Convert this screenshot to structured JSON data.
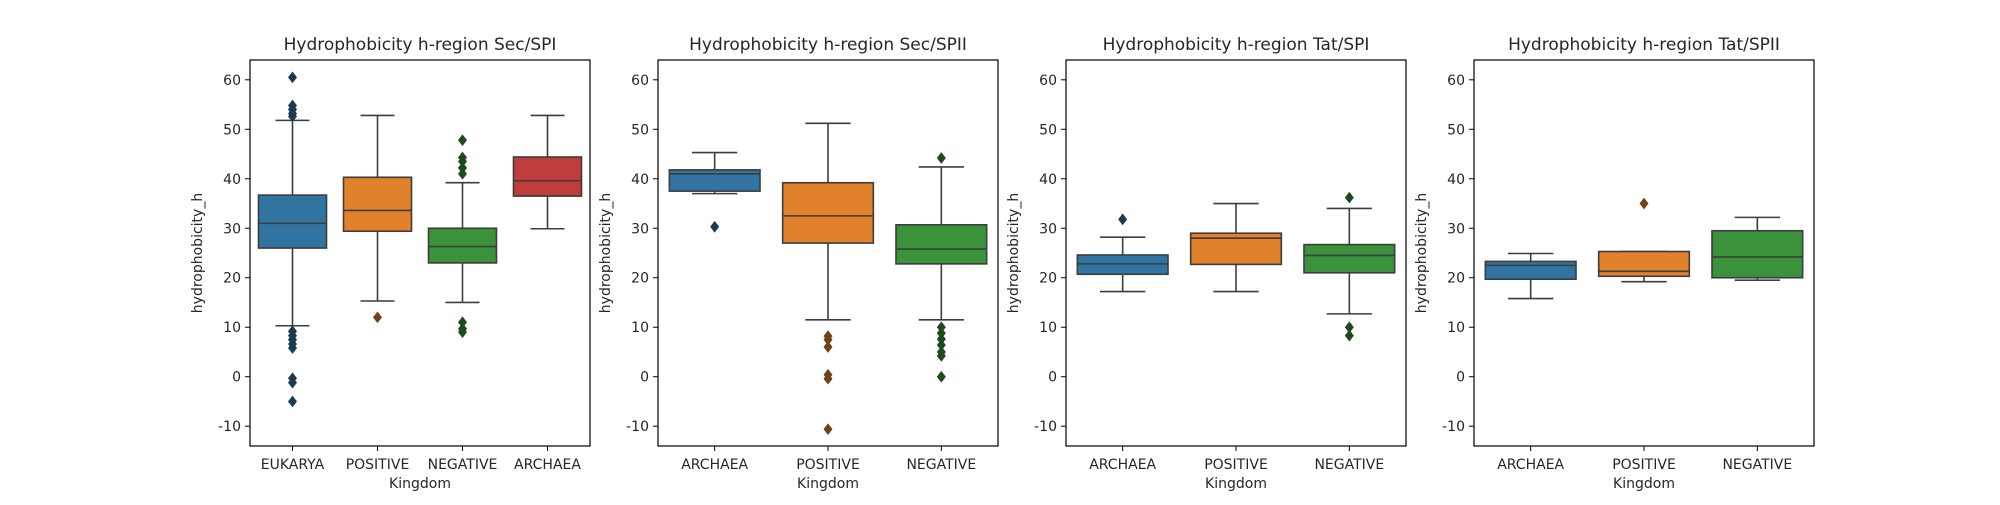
{
  "chart_data": [
    {
      "type": "box",
      "title": "Hydrophobicity h-region Sec/SPI",
      "xlabel": "Kingdom",
      "ylabel": "hydrophobicity_h",
      "ylim": [
        -14,
        64
      ],
      "yticks": [
        -10,
        0,
        10,
        20,
        30,
        40,
        50,
        60
      ],
      "grid": false,
      "categories": [
        "EUKARYA",
        "POSITIVE",
        "NEGATIVE",
        "ARCHAEA"
      ],
      "boxes": [
        {
          "category": "EUKARYA",
          "color": "#3274a1",
          "whisker_low": 10.3,
          "q1": 26.0,
          "median": 31.0,
          "q3": 36.7,
          "whisker_high": 51.8,
          "outliers": [
            60.5,
            54.8,
            54.0,
            53.2,
            52.6,
            9.2,
            8.3,
            7.5,
            6.6,
            5.8,
            -0.3,
            -1.2,
            -5.0
          ]
        },
        {
          "category": "POSITIVE",
          "color": "#e1812c",
          "whisker_low": 15.3,
          "q1": 29.4,
          "median": 33.6,
          "q3": 40.3,
          "whisker_high": 52.8,
          "outliers": [
            12.0
          ]
        },
        {
          "category": "NEGATIVE",
          "color": "#3a923a",
          "whisker_low": 15.0,
          "q1": 23.0,
          "median": 26.3,
          "q3": 30.0,
          "whisker_high": 39.2,
          "outliers": [
            47.8,
            44.3,
            43.5,
            42.2,
            41.0,
            11.0,
            9.7,
            9.0
          ]
        },
        {
          "category": "ARCHAEA",
          "color": "#c03d3e",
          "whisker_low": 29.9,
          "q1": 36.5,
          "median": 39.6,
          "q3": 44.4,
          "whisker_high": 52.8,
          "outliers": []
        }
      ]
    },
    {
      "type": "box",
      "title": "Hydrophobicity h-region Sec/SPII",
      "xlabel": "Kingdom",
      "ylabel": "hydrophobicity_h",
      "ylim": [
        -14,
        64
      ],
      "yticks": [
        -10,
        0,
        10,
        20,
        30,
        40,
        50,
        60
      ],
      "grid": false,
      "categories": [
        "ARCHAEA",
        "POSITIVE",
        "NEGATIVE"
      ],
      "boxes": [
        {
          "category": "ARCHAEA",
          "color": "#3274a1",
          "whisker_low": 37.0,
          "q1": 37.5,
          "median": 41.0,
          "q3": 41.8,
          "whisker_high": 45.3,
          "outliers": [
            30.3
          ]
        },
        {
          "category": "POSITIVE",
          "color": "#e1812c",
          "whisker_low": 11.5,
          "q1": 27.0,
          "median": 32.5,
          "q3": 39.2,
          "whisker_high": 51.2,
          "outliers": [
            8.2,
            7.5,
            6.0,
            0.4,
            -0.4,
            -10.6
          ]
        },
        {
          "category": "NEGATIVE",
          "color": "#3a923a",
          "whisker_low": 11.5,
          "q1": 22.8,
          "median": 25.8,
          "q3": 30.7,
          "whisker_high": 42.4,
          "outliers": [
            44.2,
            10.0,
            8.8,
            7.6,
            6.4,
            5.0,
            4.2,
            0.0
          ]
        }
      ]
    },
    {
      "type": "box",
      "title": "Hydrophobicity h-region Tat/SPI",
      "xlabel": "Kingdom",
      "ylabel": "hydrophobicity_h",
      "ylim": [
        -14,
        64
      ],
      "yticks": [
        -10,
        0,
        10,
        20,
        30,
        40,
        50,
        60
      ],
      "grid": false,
      "categories": [
        "ARCHAEA",
        "POSITIVE",
        "NEGATIVE"
      ],
      "boxes": [
        {
          "category": "ARCHAEA",
          "color": "#3274a1",
          "whisker_low": 17.2,
          "q1": 20.7,
          "median": 22.8,
          "q3": 24.6,
          "whisker_high": 28.2,
          "outliers": [
            31.8
          ]
        },
        {
          "category": "POSITIVE",
          "color": "#e1812c",
          "whisker_low": 17.2,
          "q1": 22.7,
          "median": 28.0,
          "q3": 29.0,
          "whisker_high": 35.0,
          "outliers": []
        },
        {
          "category": "NEGATIVE",
          "color": "#3a923a",
          "whisker_low": 12.7,
          "q1": 21.0,
          "median": 24.5,
          "q3": 26.7,
          "whisker_high": 34.0,
          "outliers": [
            36.2,
            10.0,
            8.3
          ]
        }
      ]
    },
    {
      "type": "box",
      "title": "Hydrophobicity h-region Tat/SPII",
      "xlabel": "Kingdom",
      "ylabel": "hydrophobicity_h",
      "ylim": [
        -14,
        64
      ],
      "yticks": [
        -10,
        0,
        10,
        20,
        30,
        40,
        50,
        60
      ],
      "grid": false,
      "categories": [
        "ARCHAEA",
        "POSITIVE",
        "NEGATIVE"
      ],
      "boxes": [
        {
          "category": "ARCHAEA",
          "color": "#3274a1",
          "whisker_low": 15.8,
          "q1": 19.7,
          "median": 22.5,
          "q3": 23.3,
          "whisker_high": 24.9,
          "outliers": []
        },
        {
          "category": "POSITIVE",
          "color": "#e1812c",
          "whisker_low": 19.2,
          "q1": 20.3,
          "median": 21.3,
          "q3": 25.3,
          "whisker_high": 25.3,
          "outliers": [
            35.0
          ]
        },
        {
          "category": "NEGATIVE",
          "color": "#3a923a",
          "whisker_low": 19.5,
          "q1": 20.0,
          "median": 24.2,
          "q3": 29.5,
          "whisker_high": 32.2,
          "outliers": []
        }
      ]
    }
  ]
}
